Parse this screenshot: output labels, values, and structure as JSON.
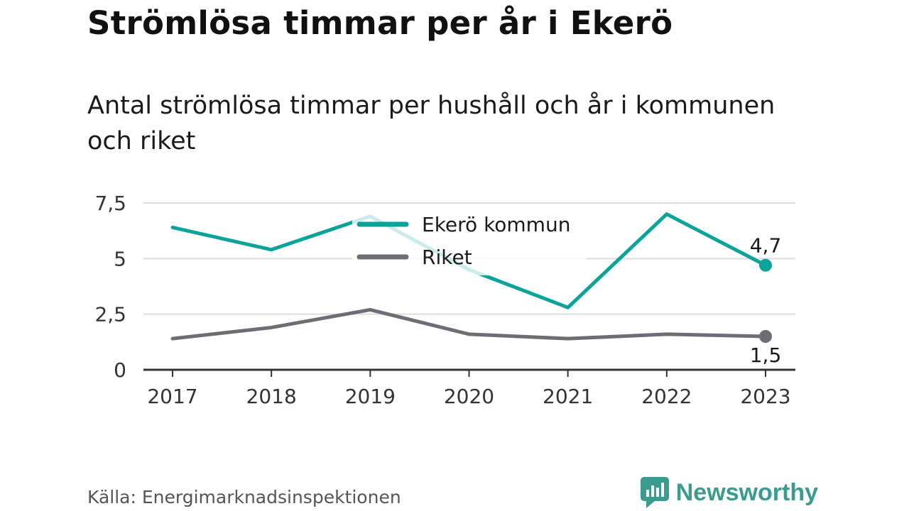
{
  "title": "Strömlösa timmar per år i Ekerö",
  "subtitle": "Antal strömlösa timmar per hushåll och år i kommunen och riket",
  "source": "Källa: Energimarknadsinspektionen",
  "brand": {
    "name": "Newsworthy",
    "icon": "newsworthy-logo-icon",
    "color": "#3a9b8e"
  },
  "chart_data": {
    "type": "line",
    "x": [
      "2017",
      "2018",
      "2019",
      "2020",
      "2021",
      "2022",
      "2023"
    ],
    "ylim": [
      0,
      7.5
    ],
    "yticks": [
      0,
      2.5,
      5,
      7.5
    ],
    "ytick_labels": [
      "0",
      "2,5",
      "5",
      "7,5"
    ],
    "grid": true,
    "legend": "top-center",
    "series": [
      {
        "name": "Ekerö kommun",
        "color": "#0aa39a",
        "values": [
          6.4,
          5.4,
          6.9,
          4.5,
          2.8,
          7.0,
          4.7
        ],
        "end_label": "4,7"
      },
      {
        "name": "Riket",
        "color": "#6d6d75",
        "values": [
          1.4,
          1.9,
          2.7,
          1.6,
          1.4,
          1.6,
          1.5
        ],
        "end_label": "1,5"
      }
    ]
  }
}
